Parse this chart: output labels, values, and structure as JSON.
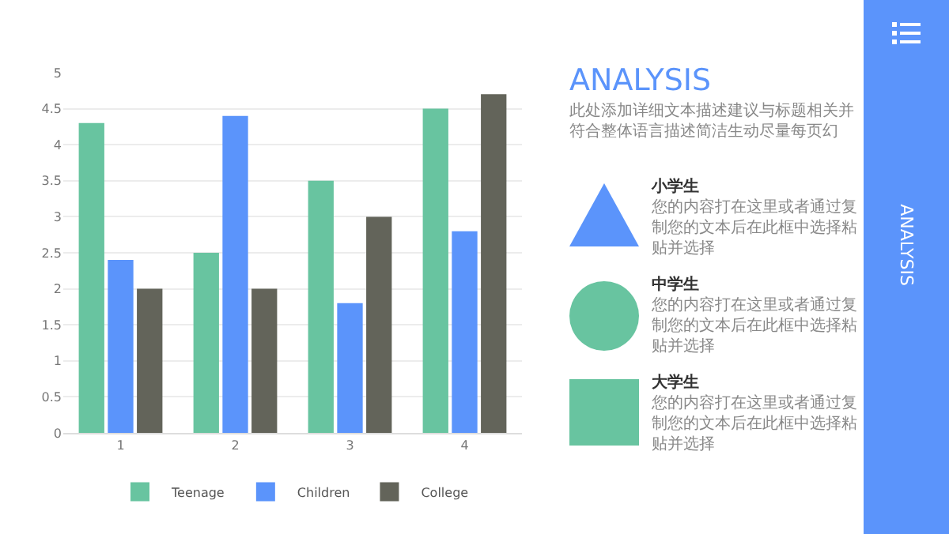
{
  "chart_data": {
    "type": "bar",
    "title": "ANALYSIS",
    "categories": [
      "1",
      "2",
      "3",
      "4"
    ],
    "series": [
      {
        "name": "Teenage",
        "color": "#68c4a0",
        "values": [
          4.3,
          2.5,
          3.5,
          4.5
        ]
      },
      {
        "name": "Children",
        "color": "#5b94fb",
        "values": [
          2.4,
          4.4,
          1.8,
          2.8
        ]
      },
      {
        "name": "College",
        "color": "#63645a",
        "values": [
          2.0,
          2.0,
          3.0,
          4.7
        ]
      }
    ],
    "ylim": [
      0,
      5
    ],
    "yticks": [
      0,
      0.5,
      1,
      1.5,
      2,
      2.5,
      3,
      3.5,
      4,
      4.5,
      5
    ],
    "grid": "y",
    "legend": "bottom",
    "annotations": [
      "此处添加详细文本描述建议与标题相关并符合整体语言描述简洁生动尽量每页幻",
      "小学生",
      "您的内容打在这里或者通过复制您的文本后在此框中选择粘贴并选择",
      "中学生",
      "您的内容打在这里或者通过复制您的文本后在此框中选择粘贴并选择",
      "大学生",
      "您的内容打在这里或者通过复制您的文本后在此框中选择粘贴并选择",
      "ANALYSIS"
    ]
  }
}
